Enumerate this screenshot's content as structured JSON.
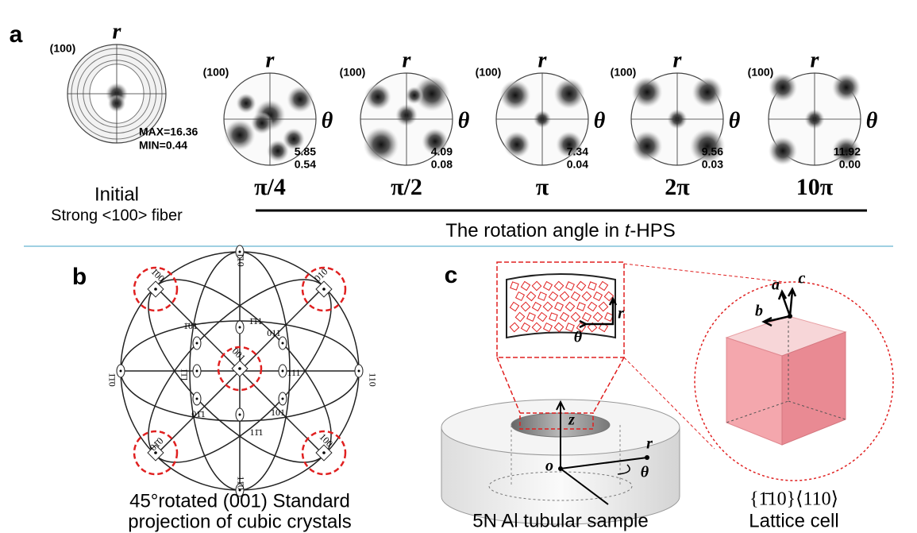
{
  "panel_a": {
    "label": "a",
    "pole_figures": [
      {
        "axis_r": "r",
        "pole": "(100)",
        "max": "MAX=16.36",
        "min": "MIN=0.44"
      },
      {
        "axis_r": "r",
        "axis_theta": "θ",
        "pole": "(100)",
        "max": "5.85",
        "min": "0.54",
        "angle": "π/4"
      },
      {
        "axis_r": "r",
        "axis_theta": "θ",
        "pole": "(100)",
        "max": "4.09",
        "min": "0.08",
        "angle": "π/2"
      },
      {
        "axis_r": "r",
        "axis_theta": "θ",
        "pole": "(100)",
        "max": "7.34",
        "min": "0.04",
        "angle": "π"
      },
      {
        "axis_r": "r",
        "axis_theta": "θ",
        "pole": "(100)",
        "max": "9.56",
        "min": "0.03",
        "angle": "2π"
      },
      {
        "axis_r": "r",
        "axis_theta": "θ",
        "pole": "(100)",
        "max": "11.92",
        "min": "0.00",
        "angle": "10π"
      }
    ],
    "initial_label": "Initial",
    "initial_sub": "Strong <100> fiber",
    "axis_caption_pre": "The rotation angle in ",
    "axis_caption_italic": "t",
    "axis_caption_post": "-HPS"
  },
  "panel_b": {
    "label": "b",
    "poles": [
      "1̄10",
      "1̄1̄0",
      "110",
      "11̄0",
      "1̄00",
      "010",
      "001",
      "01̄0",
      "100",
      "1̄11",
      "1̄01",
      "011",
      "1̄1̄1",
      "111",
      "01̄1",
      "101",
      "11̄1"
    ],
    "caption": [
      "45°rotated  (001) Standard",
      "projection of cubic crystals"
    ]
  },
  "panel_c": {
    "label": "c",
    "zoom_theta": "θ",
    "zoom_r": "r",
    "axis_z": "z",
    "origin": "o",
    "axis_r": "r",
    "axis_theta": "θ",
    "cell_a": "a",
    "cell_b": "b",
    "cell_c": "c",
    "sample_caption": "5N Al tubular sample",
    "texture": "{1̄10}⟨110⟩",
    "cell_caption": "Lattice cell"
  }
}
